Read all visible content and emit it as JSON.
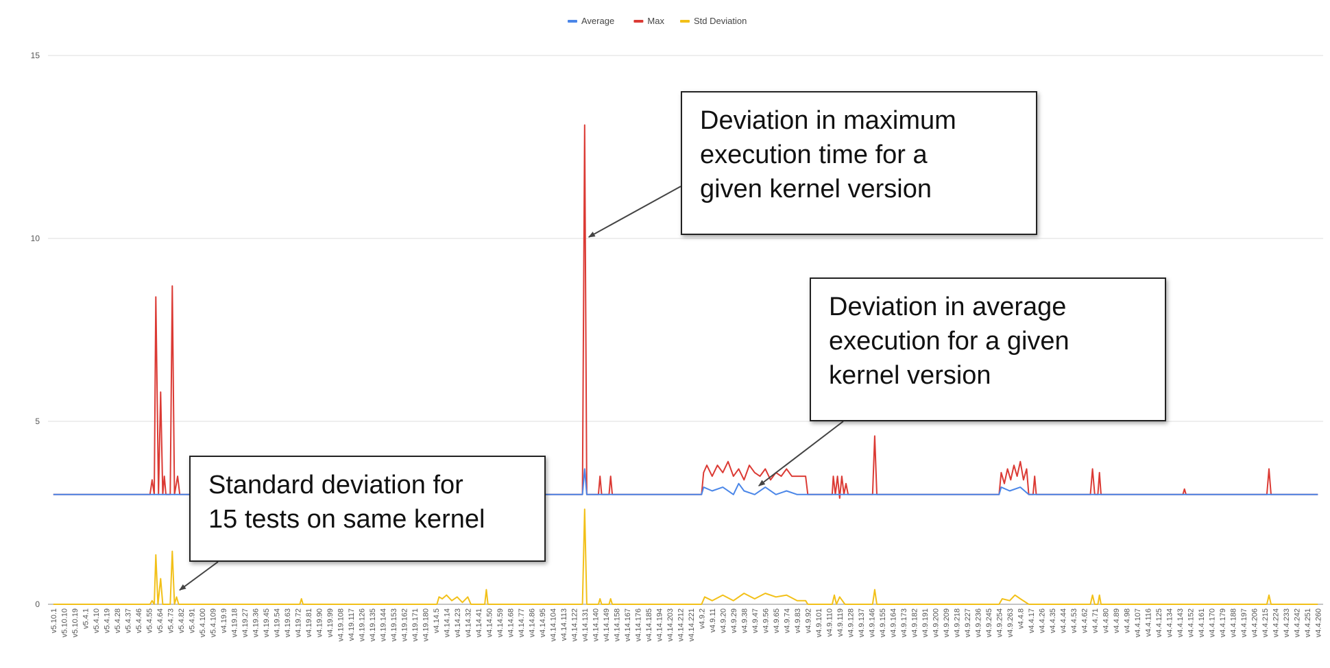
{
  "chart_data": {
    "type": "line",
    "legend": {
      "position": "top",
      "items": [
        "Average",
        "Max",
        "Std Deviation"
      ]
    },
    "colors": {
      "Average": "#4a86e8",
      "Max": "#db3a34",
      "Std Deviation": "#f2c018",
      "grid": "#dddddd"
    },
    "ylim": [
      0,
      15
    ],
    "yticks": [
      0,
      5,
      10,
      15
    ],
    "grid": true,
    "x_tick_labels": [
      "v5.10.1",
      "v5.10.10",
      "v5.10.19",
      "v5.4.1",
      "v5.4.10",
      "v5.4.19",
      "v5.4.28",
      "v5.4.37",
      "v5.4.46",
      "v5.4.55",
      "v5.4.64",
      "v5.4.73",
      "v5.4.82",
      "v5.4.91",
      "v5.4.100",
      "v5.4.109",
      "v4.19.9",
      "v4.19.18",
      "v4.19.27",
      "v4.19.36",
      "v4.19.45",
      "v4.19.54",
      "v4.19.63",
      "v4.19.72",
      "v4.19.81",
      "v4.19.90",
      "v4.19.99",
      "v4.19.108",
      "v4.19.117",
      "v4.19.126",
      "v4.19.135",
      "v4.19.144",
      "v4.19.153",
      "v4.19.162",
      "v4.19.171",
      "v4.19.180",
      "v4.14.5",
      "v4.14.14",
      "v4.14.23",
      "v4.14.32",
      "v4.14.41",
      "v4.14.50",
      "v4.14.59",
      "v4.14.68",
      "v4.14.77",
      "v4.14.86",
      "v4.14.95",
      "v4.14.104",
      "v4.14.113",
      "v4.14.122",
      "v4.14.131",
      "v4.14.140",
      "v4.14.149",
      "v4.14.158",
      "v4.14.167",
      "v4.14.176",
      "v4.14.185",
      "v4.14.194",
      "v4.14.203",
      "v4.14.212",
      "v4.14.221",
      "v4.9.2",
      "v4.9.11",
      "v4.9.20",
      "v4.9.29",
      "v4.9.38",
      "v4.9.47",
      "v4.9.56",
      "v4.9.65",
      "v4.9.74",
      "v4.9.83",
      "v4.9.92",
      "v4.9.101",
      "v4.9.110",
      "v4.9.119",
      "v4.9.128",
      "v4.9.137",
      "v4.9.146",
      "v4.9.155",
      "v4.9.164",
      "v4.9.173",
      "v4.9.182",
      "v4.9.191",
      "v4.9.200",
      "v4.9.209",
      "v4.9.218",
      "v4.9.227",
      "v4.9.236",
      "v4.9.245",
      "v4.9.254",
      "v4.9.263",
      "v4.4.8",
      "v4.4.17",
      "v4.4.26",
      "v4.4.35",
      "v4.4.44",
      "v4.4.53",
      "v4.4.62",
      "v4.4.71",
      "v4.4.80",
      "v4.4.89",
      "v4.4.98",
      "v4.4.107",
      "v4.4.116",
      "v4.4.125",
      "v4.4.134",
      "v4.4.143",
      "v4.4.152",
      "v4.4.161",
      "v4.4.170",
      "v4.4.179",
      "v4.4.188",
      "v4.4.197",
      "v4.4.206",
      "v4.4.215",
      "v4.4.224",
      "v4.4.233",
      "v4.4.242",
      "v4.4.251",
      "v4.4.260"
    ],
    "series": [
      {
        "name": "Max",
        "baseline": 3.0,
        "points": [
          [
            9.1,
            3.0
          ],
          [
            9.3,
            3.4
          ],
          [
            9.5,
            3.0
          ],
          [
            9.65,
            8.4
          ],
          [
            9.9,
            3.0
          ],
          [
            10.1,
            5.8
          ],
          [
            10.3,
            3.0
          ],
          [
            10.45,
            3.5
          ],
          [
            10.6,
            3.0
          ],
          [
            11.0,
            3.0
          ],
          [
            11.2,
            8.7
          ],
          [
            11.4,
            3.0
          ],
          [
            11.7,
            3.5
          ],
          [
            11.9,
            3.0
          ],
          [
            49.8,
            3.0
          ],
          [
            50.0,
            13.1
          ],
          [
            50.2,
            3.0
          ],
          [
            51.3,
            3.0
          ],
          [
            51.45,
            3.5
          ],
          [
            51.6,
            3.0
          ],
          [
            52.3,
            3.0
          ],
          [
            52.45,
            3.5
          ],
          [
            52.6,
            3.0
          ],
          [
            61.0,
            3.0
          ],
          [
            61.2,
            3.6
          ],
          [
            61.5,
            3.8
          ],
          [
            62.0,
            3.5
          ],
          [
            62.5,
            3.8
          ],
          [
            63.0,
            3.6
          ],
          [
            63.5,
            3.9
          ],
          [
            64.0,
            3.5
          ],
          [
            64.5,
            3.7
          ],
          [
            65.0,
            3.4
          ],
          [
            65.5,
            3.8
          ],
          [
            66.0,
            3.6
          ],
          [
            66.5,
            3.5
          ],
          [
            67.0,
            3.7
          ],
          [
            67.5,
            3.4
          ],
          [
            68.0,
            3.6
          ],
          [
            68.5,
            3.5
          ],
          [
            69.0,
            3.7
          ],
          [
            69.5,
            3.5
          ],
          [
            70.0,
            3.5
          ],
          [
            70.8,
            3.5
          ],
          [
            71.0,
            3.0
          ],
          [
            73.3,
            3.0
          ],
          [
            73.4,
            3.5
          ],
          [
            73.6,
            3.0
          ],
          [
            73.8,
            3.5
          ],
          [
            74.0,
            2.9
          ],
          [
            74.2,
            3.5
          ],
          [
            74.4,
            3.0
          ],
          [
            74.6,
            3.3
          ],
          [
            74.8,
            3.0
          ],
          [
            77.1,
            3.0
          ],
          [
            77.3,
            4.6
          ],
          [
            77.5,
            3.0
          ],
          [
            89.0,
            3.0
          ],
          [
            89.2,
            3.6
          ],
          [
            89.5,
            3.3
          ],
          [
            89.8,
            3.7
          ],
          [
            90.1,
            3.4
          ],
          [
            90.4,
            3.8
          ],
          [
            90.7,
            3.5
          ],
          [
            91.0,
            3.9
          ],
          [
            91.3,
            3.4
          ],
          [
            91.6,
            3.7
          ],
          [
            91.8,
            3.0
          ],
          [
            92.2,
            3.0
          ],
          [
            92.35,
            3.5
          ],
          [
            92.5,
            3.0
          ],
          [
            97.6,
            3.0
          ],
          [
            97.8,
            3.7
          ],
          [
            98.0,
            3.0
          ],
          [
            98.3,
            3.0
          ],
          [
            98.45,
            3.6
          ],
          [
            98.6,
            3.0
          ],
          [
            106.3,
            3.0
          ],
          [
            106.45,
            3.15
          ],
          [
            106.6,
            3.0
          ],
          [
            114.2,
            3.0
          ],
          [
            114.4,
            3.7
          ],
          [
            114.6,
            3.0
          ]
        ]
      },
      {
        "name": "Average",
        "baseline": 3.0,
        "points": [
          [
            49.8,
            3.0
          ],
          [
            50.0,
            3.7
          ],
          [
            50.2,
            3.0
          ],
          [
            61.0,
            3.0
          ],
          [
            61.2,
            3.2
          ],
          [
            62.0,
            3.1
          ],
          [
            63.0,
            3.2
          ],
          [
            64.0,
            3.0
          ],
          [
            64.5,
            3.3
          ],
          [
            65.0,
            3.1
          ],
          [
            66.0,
            3.0
          ],
          [
            67.0,
            3.2
          ],
          [
            68.0,
            3.0
          ],
          [
            69.0,
            3.1
          ],
          [
            70.0,
            3.0
          ],
          [
            71.0,
            3.0
          ],
          [
            89.0,
            3.0
          ],
          [
            89.2,
            3.2
          ],
          [
            90.0,
            3.1
          ],
          [
            91.0,
            3.2
          ],
          [
            91.8,
            3.0
          ]
        ]
      },
      {
        "name": "Std Deviation",
        "baseline": 0.0,
        "points": [
          [
            9.1,
            0.0
          ],
          [
            9.3,
            0.1
          ],
          [
            9.5,
            0.0
          ],
          [
            9.65,
            1.35
          ],
          [
            9.85,
            0.0
          ],
          [
            10.1,
            0.7
          ],
          [
            10.3,
            0.0
          ],
          [
            11.0,
            0.0
          ],
          [
            11.2,
            1.45
          ],
          [
            11.4,
            0.0
          ],
          [
            11.6,
            0.2
          ],
          [
            11.8,
            0.0
          ],
          [
            23.2,
            0.0
          ],
          [
            23.35,
            0.15
          ],
          [
            23.5,
            0.0
          ],
          [
            36.1,
            0.0
          ],
          [
            36.3,
            0.2
          ],
          [
            36.6,
            0.15
          ],
          [
            37.0,
            0.25
          ],
          [
            37.5,
            0.1
          ],
          [
            38.0,
            0.2
          ],
          [
            38.5,
            0.05
          ],
          [
            39.0,
            0.2
          ],
          [
            39.3,
            0.0
          ],
          [
            40.6,
            0.0
          ],
          [
            40.75,
            0.4
          ],
          [
            40.9,
            0.0
          ],
          [
            49.8,
            0.0
          ],
          [
            50.0,
            2.6
          ],
          [
            50.2,
            0.0
          ],
          [
            51.3,
            0.0
          ],
          [
            51.45,
            0.15
          ],
          [
            51.6,
            0.0
          ],
          [
            52.3,
            0.0
          ],
          [
            52.45,
            0.15
          ],
          [
            52.6,
            0.0
          ],
          [
            61.0,
            0.0
          ],
          [
            61.3,
            0.2
          ],
          [
            62.0,
            0.1
          ],
          [
            63.0,
            0.25
          ],
          [
            64.0,
            0.1
          ],
          [
            65.0,
            0.3
          ],
          [
            66.0,
            0.15
          ],
          [
            67.0,
            0.3
          ],
          [
            68.0,
            0.2
          ],
          [
            69.0,
            0.25
          ],
          [
            70.0,
            0.1
          ],
          [
            70.8,
            0.1
          ],
          [
            71.0,
            0.0
          ],
          [
            73.3,
            0.0
          ],
          [
            73.5,
            0.25
          ],
          [
            73.7,
            0.0
          ],
          [
            74.0,
            0.2
          ],
          [
            74.5,
            0.0
          ],
          [
            77.1,
            0.0
          ],
          [
            77.3,
            0.4
          ],
          [
            77.5,
            0.0
          ],
          [
            89.0,
            0.0
          ],
          [
            89.3,
            0.15
          ],
          [
            90.0,
            0.1
          ],
          [
            90.5,
            0.25
          ],
          [
            91.0,
            0.15
          ],
          [
            91.8,
            0.0
          ],
          [
            97.6,
            0.0
          ],
          [
            97.8,
            0.25
          ],
          [
            98.0,
            0.0
          ],
          [
            98.3,
            0.0
          ],
          [
            98.45,
            0.25
          ],
          [
            98.6,
            0.0
          ],
          [
            114.2,
            0.0
          ],
          [
            114.4,
            0.25
          ],
          [
            114.6,
            0.0
          ]
        ]
      }
    ]
  },
  "annotations": [
    {
      "id": "max",
      "text": "Deviation in maximum execution time for a given kernel version",
      "lines": [
        "Deviation in maximum",
        "execution time for a",
        "given kernel version"
      ],
      "target_x": 50.0,
      "target_y": 10.0
    },
    {
      "id": "avg",
      "text": "Deviation in average execution for a given kernel version",
      "lines": [
        "Deviation in average",
        "execution for a given",
        "kernel version"
      ],
      "target_x": 66.0,
      "target_y": 3.2
    },
    {
      "id": "std",
      "text": "Standard deviation for 15 tests on same kernel",
      "lines": [
        "Standard deviation for",
        "15 tests on same kernel"
      ],
      "target_x": 11.5,
      "target_y": 0.35
    }
  ]
}
